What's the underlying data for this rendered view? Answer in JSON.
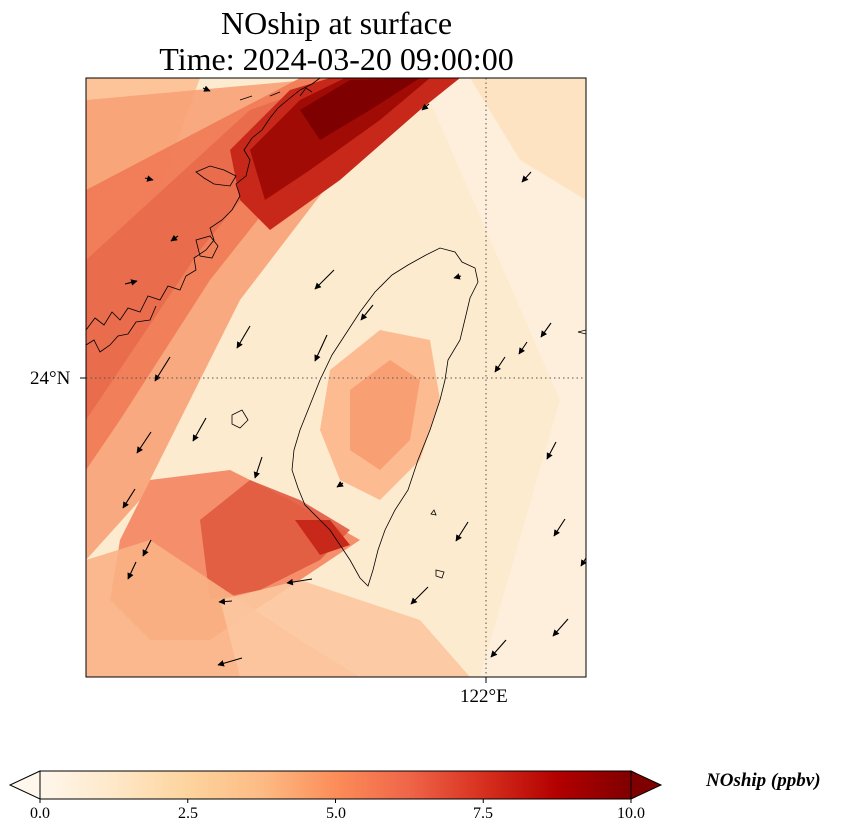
{
  "title": {
    "line1": "NOship at surface",
    "line2": "Time: 2024-03-20 09:00:00"
  },
  "map": {
    "projection": "lat-lon",
    "extent": {
      "lon_min": 118.0,
      "lon_max": 123.0,
      "lat_min": 21.0,
      "lat_max": 27.0
    },
    "gridlines": {
      "lon": [
        122
      ],
      "lat": [
        24
      ],
      "style": "dotted"
    },
    "latitude_label": "24°N",
    "longitude_label": "122°E",
    "field": "NOship",
    "field_description": "shipping NO concentration, high along the Taiwan Strait shipping lane NE-SW and along the Fujian coast",
    "wind_vectors": "northeasterly flow, mostly pointing south-southwest"
  },
  "colorbar": {
    "title": "NOship (ppbv)",
    "min": 0.0,
    "max": 10.0,
    "extend": "both",
    "colormap": "OrRd",
    "ticks": [
      "0.0",
      "2.5",
      "5.0",
      "7.5",
      "10.0"
    ],
    "colors": [
      "#fff7ec",
      "#fee8c8",
      "#fdd49e",
      "#fdbb84",
      "#fc8d59",
      "#ef6548",
      "#d7301f",
      "#b30000",
      "#7f0000"
    ]
  }
}
